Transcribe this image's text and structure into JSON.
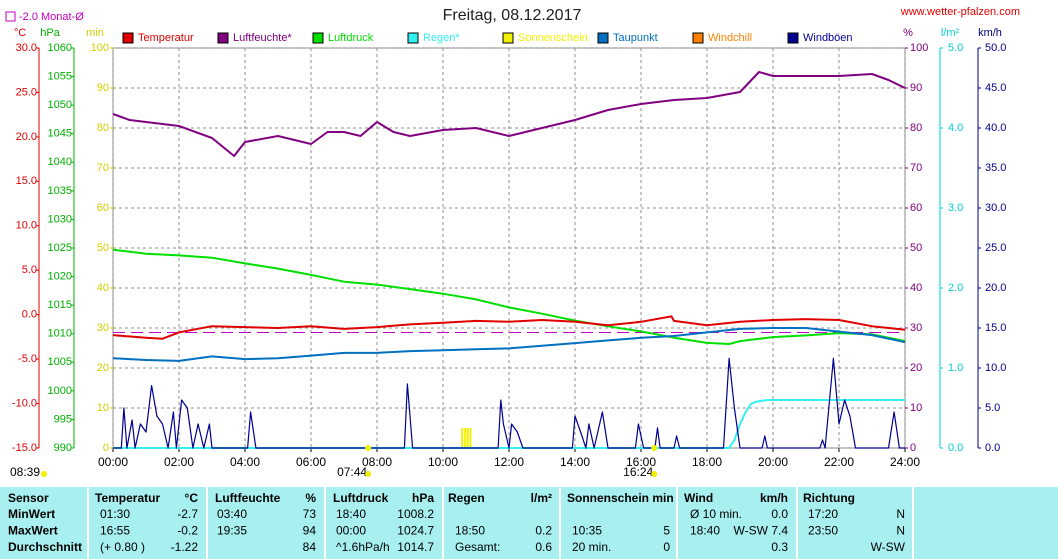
{
  "chart_data": {
    "type": "line",
    "title": "Freitag, 08.12.2017",
    "source": "www.wetter-pfalzen.com",
    "reference_line": {
      "label": "-2.0 Monat-Ø",
      "value": -2.0,
      "axis": "temp",
      "color": "#c000c0"
    },
    "xlim": [
      0,
      24
    ],
    "xticks": [
      {
        "value": 0,
        "label": "00:00"
      },
      {
        "value": 2,
        "label": "02:00"
      },
      {
        "value": 4,
        "label": "04:00"
      },
      {
        "value": 6,
        "label": "06:00"
      },
      {
        "value": 8,
        "label": "08:00"
      },
      {
        "value": 10,
        "label": "10:00"
      },
      {
        "value": 12,
        "label": "12:00"
      },
      {
        "value": 14,
        "label": "14:00"
      },
      {
        "value": 16,
        "label": "16:00"
      },
      {
        "value": 18,
        "label": "18:00"
      },
      {
        "value": 20,
        "label": "20:00"
      },
      {
        "value": 22,
        "label": "22:00"
      },
      {
        "value": 24,
        "label": "24:00"
      }
    ],
    "grid": true,
    "axes": {
      "temp": {
        "label": "°C",
        "color": "#e00000",
        "lim": [
          -15,
          30
        ],
        "ticks": [
          {
            "value": 30,
            "label": "30.0"
          },
          {
            "value": 25,
            "label": "25.0"
          },
          {
            "value": 20,
            "label": "20.0"
          },
          {
            "value": 15,
            "label": "15.0"
          },
          {
            "value": 10,
            "label": "10.0"
          },
          {
            "value": 5,
            "label": "5.0"
          },
          {
            "value": 0,
            "label": "0.0"
          },
          {
            "value": -5,
            "label": "-5.0"
          },
          {
            "value": -10,
            "label": "-10.0"
          },
          {
            "value": -15,
            "label": "-15.0"
          }
        ]
      },
      "hpa": {
        "label": "hPa",
        "color": "#00b000",
        "lim": [
          990,
          1060
        ],
        "ticks": [
          1060,
          1055,
          1050,
          1045,
          1040,
          1035,
          1030,
          1025,
          1020,
          1015,
          1010,
          1005,
          1000,
          995,
          990
        ]
      },
      "min": {
        "label": "min",
        "color": "#d0d000",
        "lim": [
          0,
          100
        ],
        "ticks": [
          100,
          90,
          80,
          70,
          60,
          50,
          40,
          30,
          20,
          10,
          0
        ]
      },
      "pct": {
        "label": "%",
        "color": "#800080",
        "lim": [
          0,
          100
        ],
        "ticks": [
          100,
          90,
          80,
          70,
          60,
          50,
          40,
          30,
          20,
          10,
          0
        ]
      },
      "rain": {
        "label": "l/m²",
        "color": "#00d0d0",
        "lim": [
          0,
          5
        ],
        "ticks": [
          {
            "value": 5,
            "label": "5.0"
          },
          {
            "value": 4,
            "label": "4.0"
          },
          {
            "value": 3,
            "label": "3.0"
          },
          {
            "value": 2,
            "label": "2.0"
          },
          {
            "value": 1,
            "label": "1.0"
          },
          {
            "value": 0,
            "label": "0.0"
          }
        ]
      },
      "kmh": {
        "label": "km/h",
        "color": "#000080",
        "lim": [
          0,
          50
        ],
        "ticks": [
          {
            "value": 50,
            "label": "50.0"
          },
          {
            "value": 45,
            "label": "45.0"
          },
          {
            "value": 40,
            "label": "40.0"
          },
          {
            "value": 35,
            "label": "35.0"
          },
          {
            "value": 30,
            "label": "30.0"
          },
          {
            "value": 25,
            "label": "25.0"
          },
          {
            "value": 20,
            "label": "20.0"
          },
          {
            "value": 15,
            "label": "15.0"
          },
          {
            "value": 10,
            "label": "10.0"
          },
          {
            "value": 5,
            "label": "5.0"
          },
          {
            "value": 0,
            "label": "0.0"
          }
        ]
      }
    },
    "series": [
      {
        "name": "Temperatur",
        "color": "#e00000",
        "axis": "temp",
        "type": "line",
        "x": [
          0,
          1,
          1.5,
          2,
          3,
          4,
          5,
          6,
          7,
          8,
          9,
          10,
          11,
          12,
          13,
          14,
          15,
          16,
          16.92,
          17,
          18,
          19,
          20,
          21,
          22,
          23,
          24
        ],
        "values": [
          -2.3,
          -2.6,
          -2.7,
          -2.0,
          -1.3,
          -1.4,
          -1.5,
          -1.3,
          -1.6,
          -1.4,
          -1.1,
          -0.9,
          -0.7,
          -0.8,
          -0.6,
          -0.8,
          -1.2,
          -0.8,
          -0.2,
          -0.7,
          -1.2,
          -0.8,
          -0.6,
          -0.5,
          -0.6,
          -1.3,
          -1.7
        ]
      },
      {
        "name": "Luftfeuchte*",
        "color": "#800080",
        "axis": "pct",
        "type": "line",
        "x": [
          0,
          0.5,
          1,
          2,
          3,
          3.67,
          4,
          5,
          6,
          6.5,
          7,
          7.5,
          8,
          8.5,
          9,
          10,
          11,
          12,
          13,
          14,
          15,
          16,
          17,
          18,
          19,
          19.58,
          20,
          21,
          22,
          23,
          23.5,
          24
        ],
        "values": [
          83.5,
          82,
          81.5,
          80.5,
          77.5,
          73,
          76.5,
          78,
          76,
          79,
          79,
          78,
          81.5,
          79,
          78,
          79.5,
          80,
          78,
          80,
          82,
          84.5,
          86,
          87,
          87.5,
          89,
          94,
          93,
          93,
          93,
          93.5,
          92,
          90
        ]
      },
      {
        "name": "Luftdruck",
        "color": "#00e000",
        "axis": "hpa",
        "type": "line",
        "x": [
          0,
          1,
          2,
          3,
          4,
          5,
          6,
          7,
          8,
          9,
          10,
          11,
          12,
          13,
          14,
          15,
          16,
          17,
          18,
          18.67,
          19,
          20,
          21,
          22,
          23,
          24
        ],
        "values": [
          1024.7,
          1024,
          1023.7,
          1023.3,
          1022.3,
          1021.4,
          1020.3,
          1019.1,
          1018.6,
          1017.8,
          1017,
          1016,
          1014.6,
          1013.5,
          1012.3,
          1011.3,
          1010.4,
          1009.3,
          1008.4,
          1008.2,
          1008.7,
          1009.4,
          1009.7,
          1010.1,
          1009.9,
          1008.7
        ]
      },
      {
        "name": "Regen*",
        "color": "#30f0f0",
        "axis": "rain",
        "type": "line",
        "x": [
          0,
          18.67,
          18.83,
          19,
          19.17,
          19.33,
          19.5,
          19.83,
          24
        ],
        "values": [
          0,
          0,
          0.1,
          0.3,
          0.45,
          0.55,
          0.58,
          0.6,
          0.6
        ]
      },
      {
        "name": "Sonnenschein",
        "color": "#f0f000",
        "axis": "min",
        "type": "bar",
        "x": [
          10.58,
          10.67,
          10.75,
          10.83
        ],
        "values": [
          5,
          5,
          5,
          5
        ]
      },
      {
        "name": "Taupunkt",
        "color": "#0070c0",
        "axis": "temp",
        "type": "line",
        "x": [
          0,
          1,
          2,
          3,
          4,
          5,
          6,
          7,
          8,
          9,
          10,
          11,
          12,
          13,
          14,
          15,
          16,
          17,
          18,
          19,
          20,
          21,
          22,
          23,
          24
        ],
        "values": [
          -4.9,
          -5.1,
          -5.2,
          -4.7,
          -5.0,
          -4.9,
          -4.6,
          -4.3,
          -4.3,
          -4.1,
          -4.0,
          -3.9,
          -3.8,
          -3.5,
          -3.2,
          -2.9,
          -2.6,
          -2.4,
          -2.0,
          -1.6,
          -1.5,
          -1.5,
          -1.9,
          -2.3,
          -3.1
        ]
      },
      {
        "name": "Windchill",
        "color": "#ff8000",
        "axis": "temp",
        "type": "line",
        "x": [],
        "values": []
      },
      {
        "name": "Windböen",
        "color": "#000090",
        "axis": "kmh",
        "type": "line",
        "x": [
          0,
          0.25,
          0.33,
          0.42,
          0.58,
          0.67,
          0.83,
          1.0,
          1.17,
          1.33,
          1.5,
          1.67,
          1.83,
          1.92,
          2.08,
          2.25,
          2.42,
          2.58,
          2.75,
          2.92,
          3.0,
          4.08,
          4.17,
          4.33,
          8.83,
          8.92,
          9.08,
          11.67,
          11.75,
          11.83,
          12,
          12.08,
          12.25,
          12.42,
          13.92,
          14.0,
          14.17,
          14.33,
          14.42,
          14.58,
          14.83,
          15.0,
          15.83,
          15.92,
          16.08,
          16.42,
          16.5,
          16.58,
          17.0,
          17.08,
          17.17,
          18.5,
          18.67,
          18.83,
          19,
          19.67,
          19.75,
          19.83,
          21.42,
          21.5,
          21.58,
          21.83,
          22.0,
          22.17,
          22.33,
          22.5,
          23.5,
          23.67,
          23.83,
          24
        ],
        "values": [
          0,
          0,
          5,
          0,
          3.5,
          0,
          3,
          2,
          7.8,
          4,
          3,
          0,
          4.5,
          0,
          6,
          5,
          0,
          3,
          0,
          3,
          0,
          0,
          4.5,
          0,
          0,
          8,
          0,
          0,
          6,
          3,
          0,
          3,
          2,
          0,
          0,
          4,
          2,
          0,
          3,
          0,
          4.5,
          0,
          0,
          3,
          0,
          0,
          2.5,
          0,
          0,
          1.5,
          0,
          0,
          11.2,
          5,
          0,
          0,
          1.5,
          0,
          0,
          1,
          0,
          11.2,
          3,
          6,
          4,
          0,
          0,
          4.5,
          0,
          0
        ]
      }
    ],
    "sun": {
      "day_length": "08:39",
      "markers": [
        {
          "label": "07:44",
          "x": 7.73
        },
        {
          "label": "16:24",
          "x": 16.4
        }
      ]
    }
  },
  "table": {
    "header": [
      "Sensor",
      "Temperatur",
      "°C",
      "Luftfeuchte",
      "%",
      "Luftdruck",
      "hPa",
      "Regen",
      "l/m²",
      "Sonnenschein min",
      "Wind",
      "km/h",
      "Richtung"
    ],
    "rows": [
      {
        "label": "MinWert",
        "cells": [
          "01:30",
          "-2.7",
          "03:40",
          "73",
          "18:40",
          "1008.2",
          null,
          null,
          null,
          null,
          "Ø 10 min.",
          "0.0",
          "17:20",
          "N"
        ]
      },
      {
        "label": "MaxWert",
        "cells": [
          "16:55",
          "-0.2",
          "19:35",
          "94",
          "00:00",
          "1024.7",
          "18:50",
          "0.2",
          "10:35",
          "5",
          "18:40",
          "W-SW 7.4",
          "23:50",
          "N"
        ]
      },
      {
        "label": "Durchschnitt",
        "cells": [
          "(+ 0.80 )",
          "-1.22",
          null,
          "84",
          "^1.6hPa/h",
          "1014.7",
          "Gesamt:",
          "0.6",
          "20 min.",
          "0",
          null,
          "0.3",
          null,
          "W-SW"
        ]
      }
    ]
  }
}
